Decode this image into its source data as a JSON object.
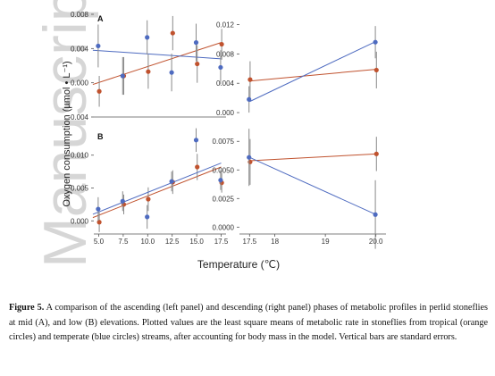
{
  "watermark": "Manuscript",
  "caption": {
    "label": "Figure 5.",
    "text": " A comparison of the ascending (left panel) and descending (right panel) phases of metabolic profiles in perlid stoneflies at mid (A), and low (B) elevations. Plotted values are the least square means of metabolic rate in stoneflies from tropical (orange circles) and temperate (blue circles) streams, after accounting for body mass in the model. Vertical bars are standard errors."
  },
  "colors": {
    "tropical": "#c0522e",
    "temperate": "#4e6bc0",
    "errorbar": "#8a8a8a"
  },
  "chart_data": [
    {
      "id": "A-left",
      "type": "scatter",
      "panel_label": "A",
      "xlim": [
        4.5,
        18.0
      ],
      "ylim": [
        -0.004,
        0.008
      ],
      "yticks": [
        "0.008",
        "0.004",
        "0.000",
        "-0.004"
      ],
      "yticks_values": [
        0.008,
        0.004,
        0.0,
        -0.004
      ],
      "xticks_shown": false,
      "series": [
        {
          "group": "tropical",
          "color": "#c0522e",
          "x": [
            5.0,
            7.5,
            10.0,
            12.5,
            15.0,
            17.5
          ],
          "y": [
            -0.001,
            0.0008,
            0.0013,
            0.0058,
            0.0022,
            0.0045
          ],
          "err": [
            0.0018,
            0.0022,
            0.002,
            0.002,
            0.0022,
            0.0018
          ],
          "fit": [
            -0.0002,
            0.0047
          ]
        },
        {
          "group": "temperate",
          "color": "#4e6bc0",
          "x": [
            5.0,
            7.5,
            10.0,
            12.5,
            15.0,
            17.5
          ],
          "y": [
            0.0043,
            0.0008,
            0.0053,
            0.0012,
            0.0047,
            0.0018
          ],
          "err": [
            0.0025,
            0.0022,
            0.002,
            0.0022,
            0.0022,
            0.002
          ],
          "fit": [
            0.0038,
            0.0028
          ]
        }
      ]
    },
    {
      "id": "A-right",
      "type": "scatter",
      "xlim": [
        17.3,
        20.2
      ],
      "ylim": [
        -0.0006,
        0.0134
      ],
      "yticks": [
        "0.012",
        "0.008",
        "0.004",
        "0.000"
      ],
      "yticks_values": [
        0.012,
        0.008,
        0.004,
        0.0
      ],
      "xticks_shown": false,
      "series": [
        {
          "group": "tropical",
          "color": "#c0522e",
          "x": [
            17.5,
            20.0
          ],
          "y": [
            0.0045,
            0.0058
          ],
          "err": [
            0.0025,
            0.0025
          ],
          "fit": [
            0.0043,
            0.0059
          ]
        },
        {
          "group": "temperate",
          "color": "#4e6bc0",
          "x": [
            17.5,
            20.0
          ],
          "y": [
            0.0018,
            0.0096
          ],
          "err": [
            0.0018,
            0.0022
          ],
          "fit": [
            0.0015,
            0.0097
          ]
        }
      ]
    },
    {
      "id": "B-left",
      "type": "scatter",
      "panel_label": "B",
      "xlim": [
        4.5,
        18.0
      ],
      "ylim": [
        -0.002,
        0.0135
      ],
      "yticks": [
        "0.010",
        "0.005",
        "0.000"
      ],
      "yticks_values": [
        0.01,
        0.005,
        0.0
      ],
      "xticks": [
        "5.0",
        "7.5",
        "10.0",
        "12.5",
        "15.0",
        "17.5"
      ],
      "xticks_values": [
        5.0,
        7.5,
        10.0,
        12.5,
        15.0,
        17.5
      ],
      "series": [
        {
          "group": "tropical",
          "color": "#c0522e",
          "x": [
            5.0,
            7.5,
            10.0,
            12.5,
            15.0,
            17.5
          ],
          "y": [
            -0.0002,
            0.0025,
            0.0033,
            0.0059,
            0.0082,
            0.0058
          ],
          "err": [
            0.0015,
            0.0015,
            0.0018,
            0.0018,
            0.002,
            0.0015
          ],
          "fit": [
            0.0005,
            0.0082
          ]
        },
        {
          "group": "temperate",
          "color": "#4e6bc0",
          "x": [
            5.0,
            7.5,
            10.0,
            12.5,
            15.0,
            17.5
          ],
          "y": [
            0.0018,
            0.003,
            0.0006,
            0.006,
            0.0123,
            0.0062
          ],
          "err": [
            0.0018,
            0.0015,
            0.0018,
            0.0015,
            0.0018,
            0.0015
          ],
          "fit": [
            0.001,
            0.0088
          ]
        }
      ]
    },
    {
      "id": "B-right",
      "type": "scatter",
      "xlim": [
        17.3,
        20.2
      ],
      "ylim": [
        -0.0006,
        0.0083
      ],
      "yticks": [
        "0.0075",
        "0.0050",
        "0.0025",
        "0.0000"
      ],
      "yticks_values": [
        0.0075,
        0.005,
        0.0025,
        0.0
      ],
      "xticks": [
        "17.5",
        "18",
        "19",
        "20.0"
      ],
      "xticks_values": [
        17.5,
        18.0,
        19.0,
        20.0
      ],
      "series": [
        {
          "group": "tropical",
          "color": "#c0522e",
          "x": [
            17.5,
            20.0
          ],
          "y": [
            0.0057,
            0.0064
          ],
          "err": [
            0.002,
            0.0015
          ],
          "fit": [
            0.0058,
            0.0064
          ]
        },
        {
          "group": "temperate",
          "color": "#4e6bc0",
          "x": [
            17.5,
            20.0
          ],
          "y": [
            0.0061,
            0.0011
          ],
          "err": [
            0.0025,
            0.003
          ],
          "fit": [
            0.0061,
            0.0011
          ]
        }
      ]
    }
  ],
  "axes": {
    "xlabel": "Temperature (℃)",
    "ylabel": "Oxygen consumption (µmol • L⁻¹)"
  }
}
